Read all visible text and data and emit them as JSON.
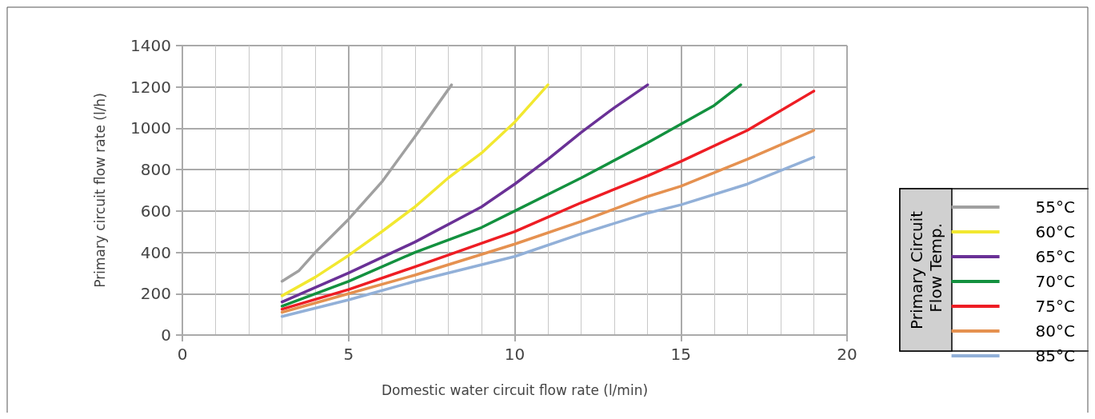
{
  "chart_data": {
    "type": "line",
    "xlabel": "Domestic water circuit flow rate (l/min)",
    "ylabel": "Primary circuit flow rate (l/h)",
    "legend_title": "Primary Circuit Flow Temp.",
    "legend": "right",
    "grid": true,
    "marker": "none",
    "line_style": "solid",
    "xlim": [
      0,
      20
    ],
    "xticks": [
      0,
      5,
      10,
      15,
      20
    ],
    "ylim": [
      0,
      1400
    ],
    "yticks": [
      0,
      200,
      400,
      600,
      800,
      1000,
      1200,
      1400
    ],
    "series": [
      {
        "name": "55°C",
        "color": "#a0a0a0",
        "x": [
          3,
          3.5,
          4,
          4.5,
          5,
          6,
          7,
          8.1
        ],
        "values": [
          260,
          310,
          400,
          480,
          560,
          740,
          960,
          1210
        ]
      },
      {
        "name": "60°C",
        "color": "#f2e830",
        "x": [
          3,
          4,
          5,
          6,
          7,
          8,
          9,
          10,
          11
        ],
        "values": [
          190,
          280,
          385,
          500,
          620,
          760,
          880,
          1030,
          1210
        ]
      },
      {
        "name": "65°C",
        "color": "#6a3196",
        "x": [
          3,
          5,
          7,
          9,
          10,
          11,
          12,
          13,
          14
        ],
        "values": [
          160,
          300,
          450,
          620,
          730,
          850,
          980,
          1100,
          1210
        ]
      },
      {
        "name": "70°C",
        "color": "#13913f",
        "x": [
          3,
          5,
          7,
          9,
          10,
          12,
          14,
          15,
          16,
          16.8
        ],
        "values": [
          140,
          260,
          400,
          520,
          600,
          760,
          930,
          1020,
          1110,
          1210
        ]
      },
      {
        "name": "75°C",
        "color": "#ee1d24",
        "x": [
          3,
          5,
          7,
          10,
          12,
          14,
          15,
          17,
          19
        ],
        "values": [
          125,
          220,
          330,
          500,
          640,
          770,
          840,
          990,
          1180
        ]
      },
      {
        "name": "80°C",
        "color": "#e59150",
        "x": [
          3,
          5,
          7,
          10,
          12,
          14,
          15,
          17,
          19
        ],
        "values": [
          110,
          200,
          290,
          440,
          550,
          670,
          720,
          850,
          990
        ]
      },
      {
        "name": "85°C",
        "color": "#92b0d8",
        "x": [
          3,
          5,
          7,
          10,
          12,
          14,
          15,
          17,
          19
        ],
        "values": [
          90,
          170,
          260,
          380,
          490,
          590,
          630,
          730,
          860
        ]
      }
    ]
  }
}
